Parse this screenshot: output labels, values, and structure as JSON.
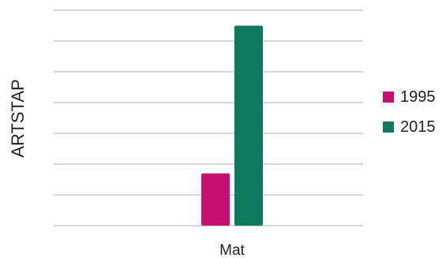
{
  "chart_data": {
    "type": "bar",
    "categories": [
      "Mat"
    ],
    "series": [
      {
        "name": "1995",
        "values": [
          17
        ],
        "color": "#c8106e"
      },
      {
        "name": "2015",
        "values": [
          65
        ],
        "color": "#0e7a5c"
      }
    ],
    "xlabel": "",
    "ylabel": "ARTSTAP",
    "ylim": [
      0,
      70
    ],
    "grid": true,
    "legend_position": "right"
  }
}
